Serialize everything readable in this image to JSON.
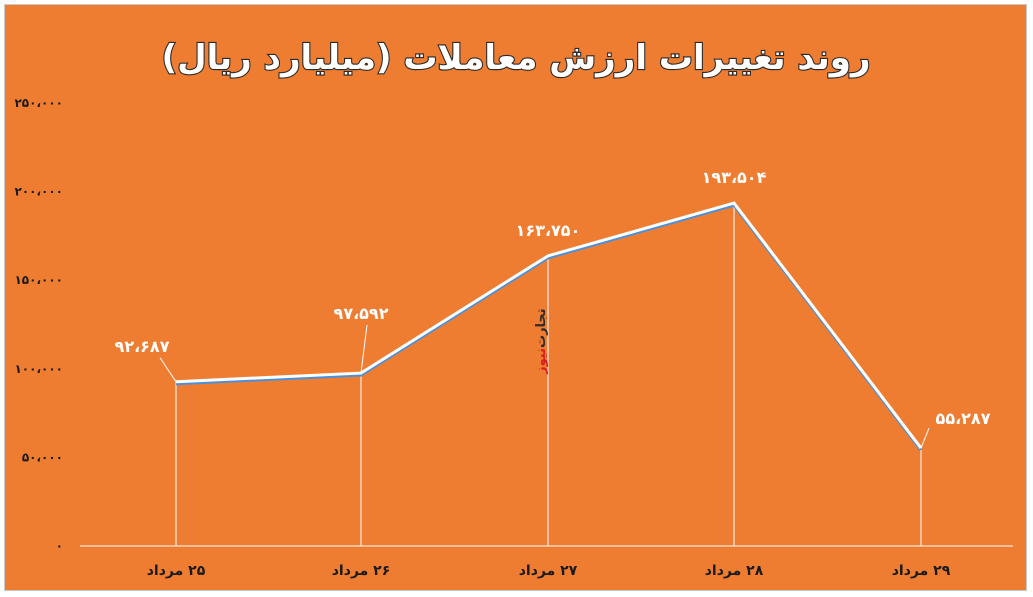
{
  "chart_data": {
    "type": "line",
    "title": "روند تغییرات ارزش معاملات (میلیارد ریال)",
    "xlabel": "",
    "ylabel": "",
    "categories": [
      "۲۵ مرداد",
      "۲۶ مرداد",
      "۲۷ مرداد",
      "۲۸ مرداد",
      "۲۹ مرداد"
    ],
    "values": [
      92687,
      97592,
      163750,
      193504,
      55287
    ],
    "data_labels": [
      "۹۲،۶۸۷",
      "۹۷،۵۹۲",
      "۱۶۳،۷۵۰",
      "۱۹۳،۵۰۴",
      "۵۵،۲۸۷"
    ],
    "ylim": [
      0,
      250000
    ],
    "y_ticks": [
      0,
      50000,
      100000,
      150000,
      200000,
      250000
    ],
    "y_tick_labels": [
      "۰",
      "۵۰،۰۰۰",
      "۱۰۰،۰۰۰",
      "۱۵۰،۰۰۰",
      "۲۰۰،۰۰۰",
      "۲۵۰،۰۰۰"
    ],
    "grid": false,
    "colors": {
      "background": "#ee7d32",
      "line": "#ffffff",
      "line_shadow": "#4a90d9",
      "text": "#1a1a1a"
    }
  },
  "watermark": {
    "part1": "تجارت",
    "part2": "نیوز"
  }
}
